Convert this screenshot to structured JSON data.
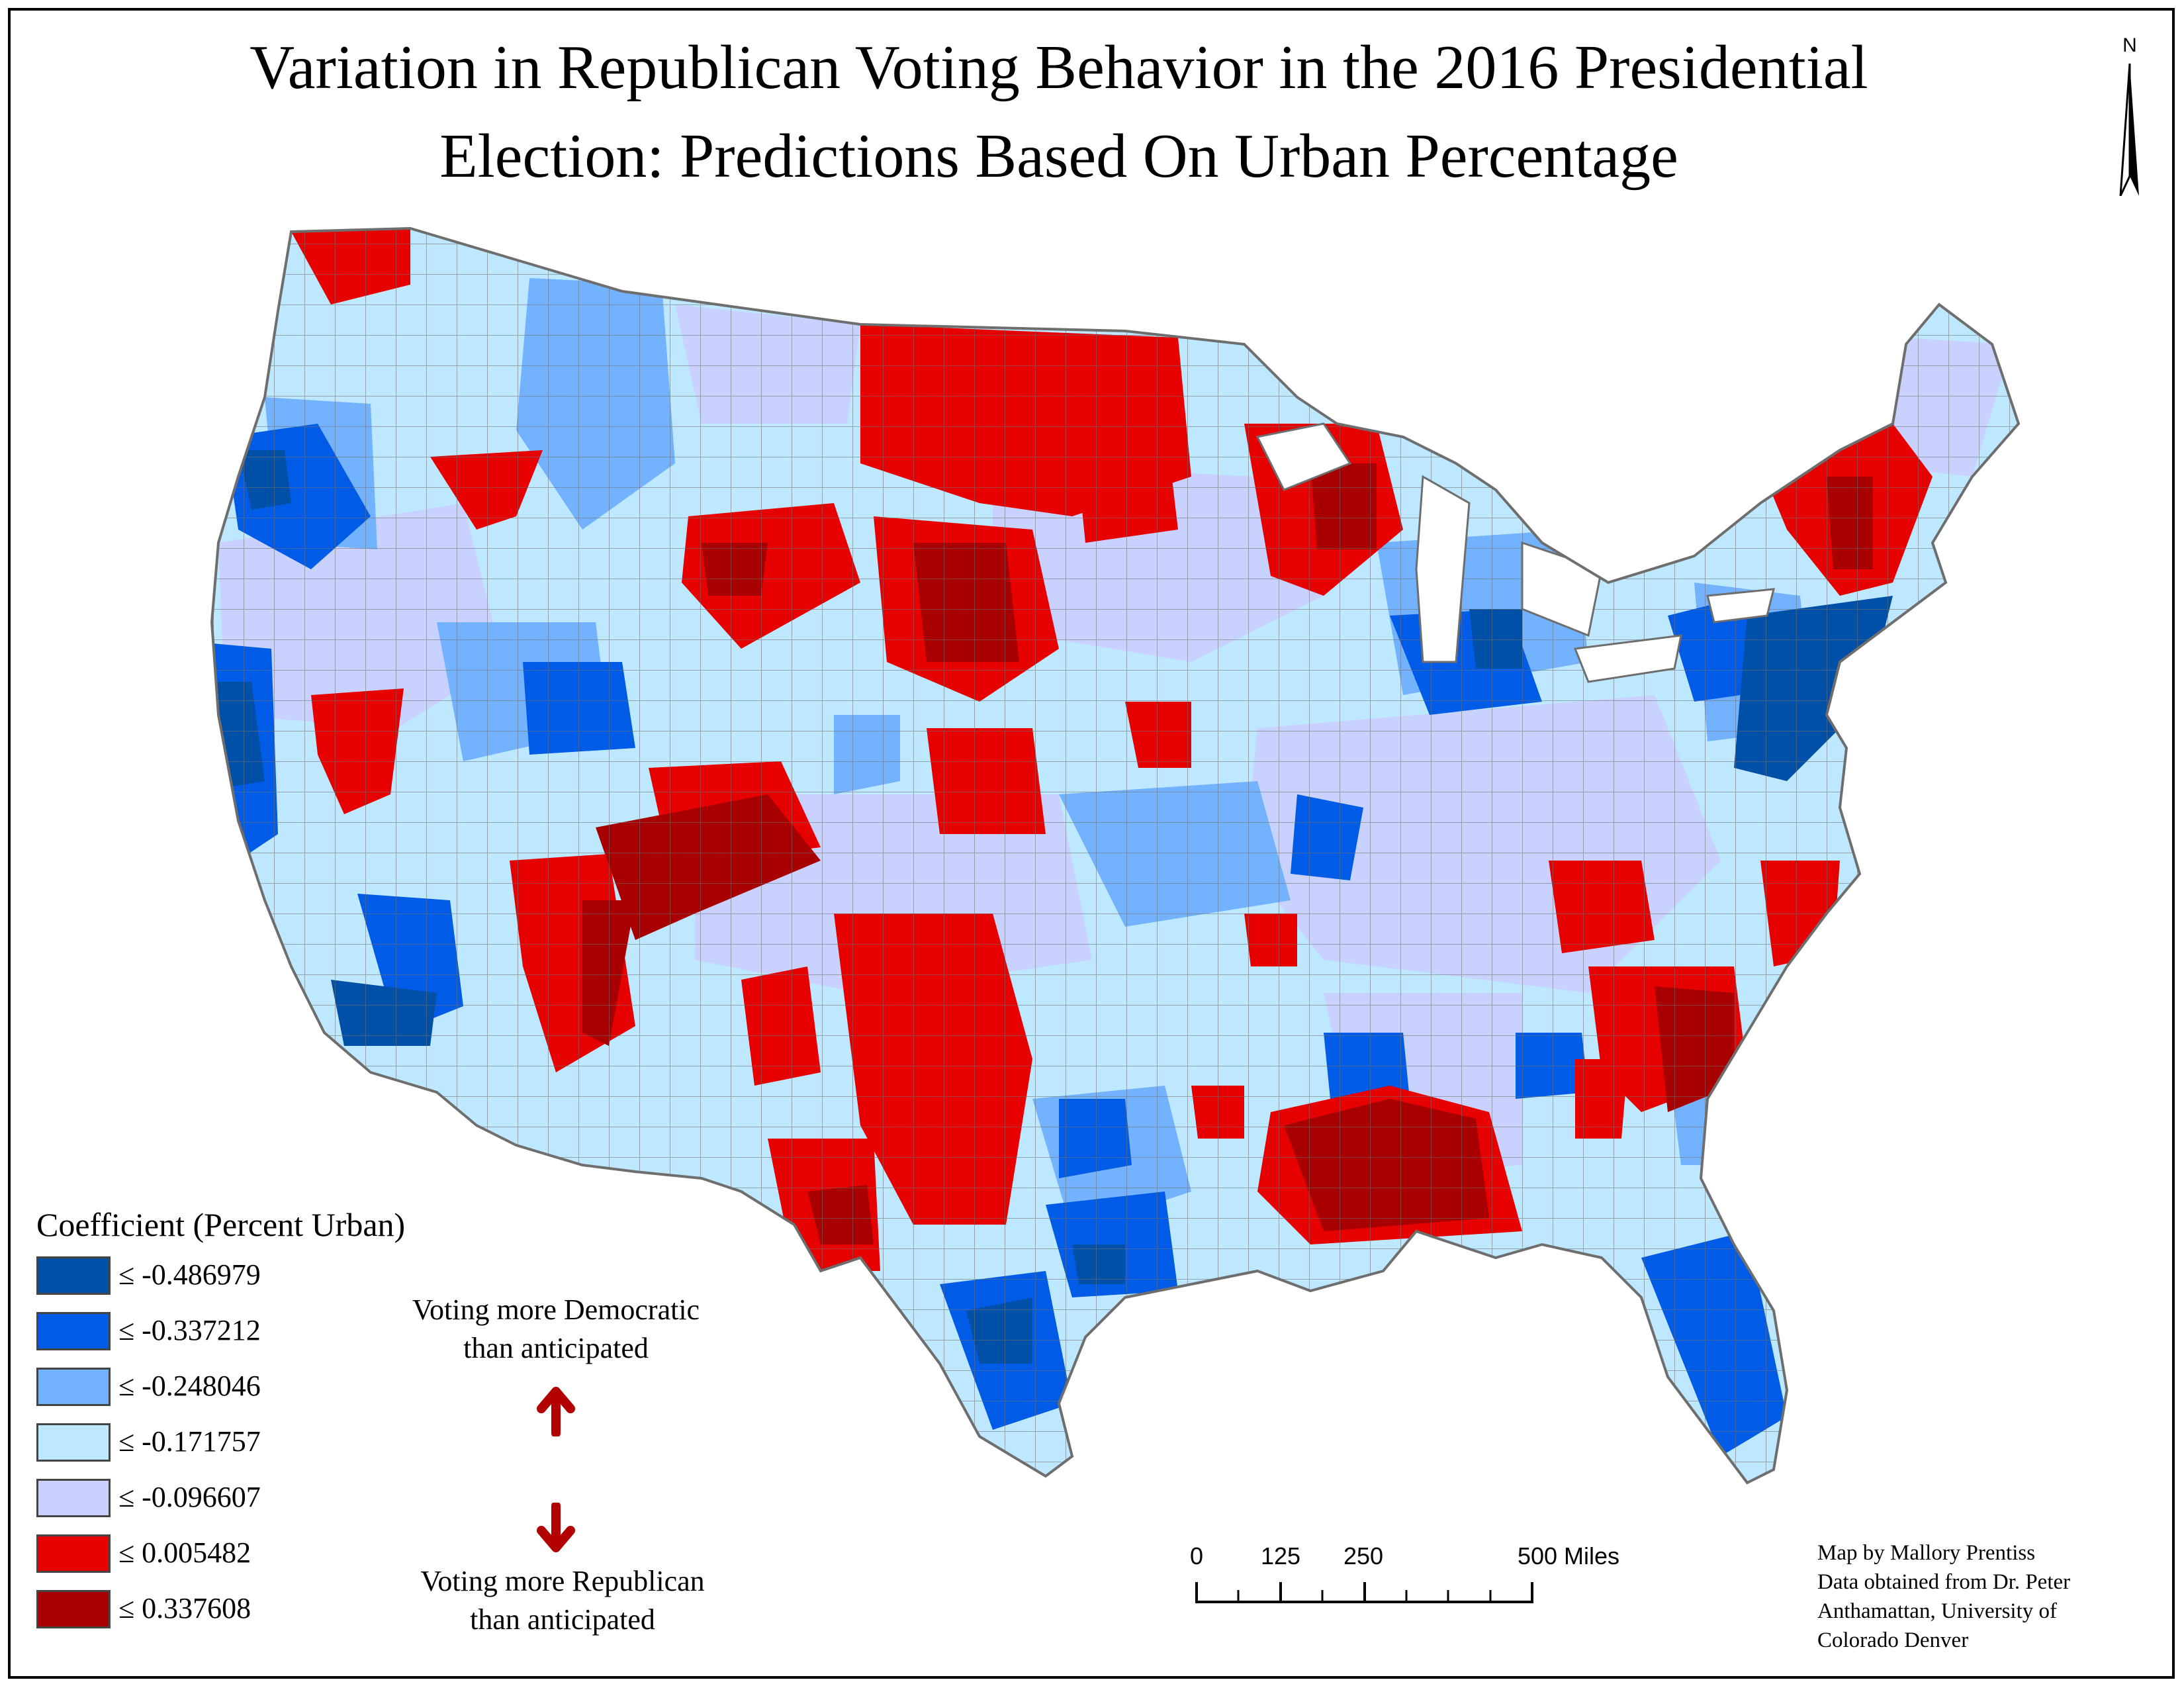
{
  "title": {
    "line1": "Variation in Republican Voting Behavior in the 2016 Presidential",
    "line2": "Election: Predictions Based On Urban Percentage"
  },
  "north_arrow": {
    "label": "N"
  },
  "legend": {
    "title": "Coefficient (Percent Urban)",
    "classes": [
      {
        "label": "≤ -0.486979",
        "color": "#0050a8"
      },
      {
        "label": "≤ -0.337212",
        "color": "#005ce6"
      },
      {
        "label": "≤ -0.248046",
        "color": "#73b2ff"
      },
      {
        "label": "≤ -0.171757",
        "color": "#bee8ff"
      },
      {
        "label": "≤ -0.096607",
        "color": "#c9d2ff"
      },
      {
        "label": "≤ 0.005482",
        "color": "#e60000"
      },
      {
        "label": "≤ 0.337608",
        "color": "#a80000"
      }
    ]
  },
  "annotations": {
    "democratic": {
      "line1": "Voting more Democratic",
      "line2": "than anticipated"
    },
    "republican": {
      "line1": "Voting more Republican",
      "line2": "than anticipated"
    },
    "arrow_color": "#b30000"
  },
  "scale_bar": {
    "labels": [
      "0",
      "125",
      "250",
      "500 Miles"
    ]
  },
  "credit": {
    "line1": "Map by Mallory Prentiss",
    "line2": "Data obtained from Dr. Peter",
    "line3": "Anthamattan, University of",
    "line4": "Colorado Denver"
  },
  "map": {
    "border_color": "#6e6e6e",
    "water_color": "#ffffff"
  }
}
